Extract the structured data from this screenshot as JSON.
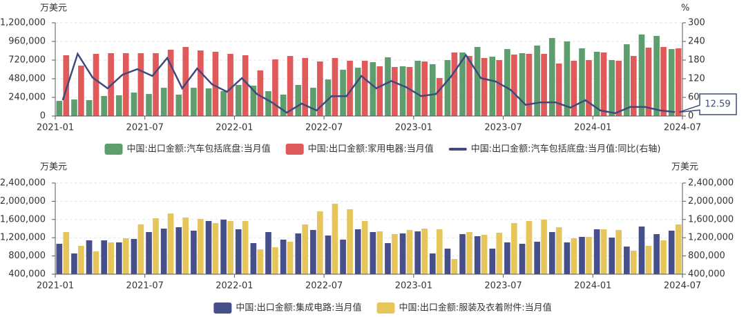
{
  "chart_data": [
    {
      "type": "bar",
      "left_unit": "万美元",
      "right_unit": "%",
      "categories": [
        "2021-01",
        "2021-02",
        "2021-03",
        "2021-04",
        "2021-05",
        "2021-06",
        "2021-07",
        "2021-08",
        "2021-09",
        "2021-10",
        "2021-11",
        "2021-12",
        "2022-01",
        "2022-02",
        "2022-03",
        "2022-04",
        "2022-05",
        "2022-06",
        "2022-07",
        "2022-08",
        "2022-09",
        "2022-10",
        "2022-11",
        "2022-12",
        "2023-01",
        "2023-02",
        "2023-03",
        "2023-04",
        "2023-05",
        "2023-06",
        "2023-07",
        "2023-08",
        "2023-09",
        "2023-10",
        "2023-11",
        "2023-12",
        "2024-01",
        "2024-02",
        "2024-03",
        "2024-04",
        "2024-05",
        "2024-06"
      ],
      "xticks": [
        "2021-01",
        "2021-07",
        "2022-01",
        "2022-07",
        "2023-01",
        "2023-07",
        "2024-01",
        "2024-07"
      ],
      "ylim": [
        0,
        1200000
      ],
      "yticks": [
        0,
        {
          "value": 240000,
          "label": "240,000"
        },
        {
          "value": 480000,
          "label": "480,000"
        },
        {
          "value": 720000,
          "label": "720,000"
        },
        {
          "value": 960000,
          "label": "960,000"
        },
        {
          "value": 1200000,
          "label": "1,200,000"
        }
      ],
      "y2lim": [
        0,
        300
      ],
      "y2ticks": [
        0,
        60,
        120,
        180,
        240,
        300
      ],
      "grid": true,
      "series": [
        {
          "name": "中国:出口金额:汽车包括底盘:当月值",
          "type": "bar",
          "color": "#5e9e6e",
          "values": [
            195000,
            213000,
            205000,
            258000,
            267000,
            302000,
            284000,
            364000,
            276000,
            364000,
            356000,
            320000,
            400000,
            391000,
            320000,
            276000,
            400000,
            364000,
            471000,
            596000,
            622000,
            693000,
            756000,
            640000,
            711000,
            667000,
            720000,
            818000,
            889000,
            764000,
            862000,
            809000,
            907000,
            1004000,
            960000,
            871000,
            827000,
            720000,
            924000,
            1049000,
            1031000,
            862000
          ]
        },
        {
          "name": "中国:出口金额:家用电器:当月值",
          "type": "bar",
          "color": "#e05a5c",
          "values": [
            782000,
            649000,
            800000,
            809000,
            809000,
            809000,
            809000,
            853000,
            889000,
            844000,
            827000,
            800000,
            782000,
            587000,
            729000,
            773000,
            747000,
            702000,
            747000,
            711000,
            711000,
            640000,
            631000,
            631000,
            702000,
            489000,
            818000,
            773000,
            747000,
            720000,
            791000,
            800000,
            800000,
            676000,
            711000,
            720000,
            818000,
            711000,
            773000,
            880000,
            889000,
            871000
          ]
        },
        {
          "name": "中国:出口金额:汽车包括底盘:当月值:同比(右轴)",
          "type": "line",
          "axis": "y2",
          "color": "#3f4a7c",
          "values": [
            51,
            200,
            124,
            89,
            133,
            151,
            129,
            187,
            89,
            153,
            102,
            78,
            122,
            71,
            44,
            11,
            40,
            18,
            64,
            64,
            129,
            89,
            113,
            93,
            64,
            71,
            127,
            196,
            122,
            111,
            84,
            36,
            44,
            44,
            27,
            51,
            18,
            9,
            29,
            29,
            18,
            12.59
          ]
        }
      ]
    },
    {
      "type": "bar",
      "left_unit": "万美元",
      "right_unit": "万美元",
      "categories": [
        "2021-01",
        "2021-02",
        "2021-03",
        "2021-04",
        "2021-05",
        "2021-06",
        "2021-07",
        "2021-08",
        "2021-09",
        "2021-10",
        "2021-11",
        "2021-12",
        "2022-01",
        "2022-02",
        "2022-03",
        "2022-04",
        "2022-05",
        "2022-06",
        "2022-07",
        "2022-08",
        "2022-09",
        "2022-10",
        "2022-11",
        "2022-12",
        "2023-01",
        "2023-02",
        "2023-03",
        "2023-04",
        "2023-05",
        "2023-06",
        "2023-07",
        "2023-08",
        "2023-09",
        "2023-10",
        "2023-11",
        "2023-12",
        "2024-01",
        "2024-02",
        "2024-03",
        "2024-04",
        "2024-05",
        "2024-06"
      ],
      "xticks": [
        "2021-01",
        "2021-07",
        "2022-01",
        "2022-07",
        "2023-01",
        "2023-07",
        "2024-01",
        "2024-07"
      ],
      "ylim": [
        400000,
        2400000
      ],
      "yticks": [
        {
          "value": 400000,
          "label": "400,000"
        },
        {
          "value": 800000,
          "label": "800,000"
        },
        {
          "value": 1200000,
          "label": "1,200,000"
        },
        {
          "value": 1600000,
          "label": "1,600,000"
        },
        {
          "value": 2000000,
          "label": "2,000,000"
        },
        {
          "value": 2400000,
          "label": "2,400,000"
        }
      ],
      "y2lim": [
        400000,
        2400000
      ],
      "y2ticks": [
        {
          "value": 400000,
          "label": "400,000"
        },
        {
          "value": 800000,
          "label": "800,000"
        },
        {
          "value": 1200000,
          "label": "1,200,000"
        },
        {
          "value": 1600000,
          "label": "1,600,000"
        },
        {
          "value": 2000000,
          "label": "2,000,000"
        },
        {
          "value": 2400000,
          "label": "2,400,000"
        }
      ],
      "grid": true,
      "series": [
        {
          "name": "中国:出口金额:集成电路:当月值",
          "type": "bar",
          "color": "#474f8a",
          "values": [
            1067000,
            855000,
            1142000,
            1142000,
            1097000,
            1173000,
            1324000,
            1400000,
            1430000,
            1355000,
            1567000,
            1597000,
            1385000,
            1082000,
            1324000,
            1158000,
            1294000,
            1370000,
            1248000,
            1158000,
            1385000,
            1324000,
            1082000,
            1294000,
            1339000,
            855000,
            961000,
            1279000,
            1233000,
            961000,
            1097000,
            1067000,
            1112000,
            1324000,
            1097000,
            1218000,
            1385000,
            1203000,
            1006000,
            1445000,
            1279000,
            1355000
          ]
        },
        {
          "name": "中国:出口金额:服装及衣着附件:当月值",
          "type": "bar",
          "color": "#e6c65a",
          "values": [
            1324000,
            1021000,
            900000,
            1097000,
            1188000,
            1491000,
            1627000,
            1733000,
            1642000,
            1612000,
            1521000,
            1567000,
            1567000,
            945000,
            991000,
            1112000,
            1491000,
            1779000,
            1945000,
            1824000,
            1567000,
            1339000,
            1279000,
            1370000,
            1400000,
            1385000,
            733000,
            1324000,
            1264000,
            1309000,
            1521000,
            1567000,
            1597000,
            1430000,
            1188000,
            1218000,
            1385000,
            1370000,
            915000,
            1021000,
            1142000,
            1491000
          ]
        }
      ]
    }
  ]
}
